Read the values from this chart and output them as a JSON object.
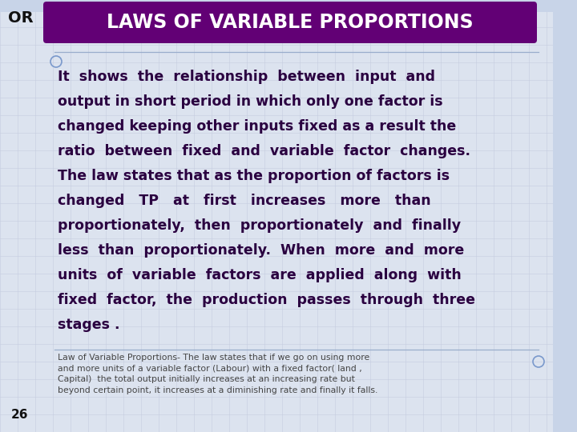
{
  "background_color": "#dce3ef",
  "grid_color": "#c5cde0",
  "title_text": "LAWS OF VARIABLE PROPORTIONS",
  "title_bg_color": "#620075",
  "title_text_color": "#ffffff",
  "or_text": "OR",
  "or_color": "#111111",
  "body_lines": [
    "It  shows  the  relationship  between  input  and",
    "output in short period in which only one factor is",
    "changed keeping other inputs fixed as a result the",
    "ratio  between  fixed  and  variable  factor  changes.",
    "The law states that as the proportion of factors is",
    "changed   TP   at   first   increases   more   than",
    "proportionately,  then  proportionately  and  finally",
    "less  than  proportionately.  When  more  and  more",
    "units  of  variable  factors  are  applied  along  with",
    "fixed  factor,  the  production  passes  through  three",
    "stages ."
  ],
  "footer_text": "Law of Variable Proportions- The law states that if we go on using more\nand more units of a variable factor (Labour) with a fixed factor( land ,\nCapital)  the total output initially increases at an increasing rate but\nbeyond certain point, it increases at a diminishing rate and finally it falls.",
  "page_number": "26",
  "body_text_color": "#2a0040",
  "footer_text_color": "#444444",
  "page_num_color": "#111111",
  "top_bar_color": "#c8d4e8",
  "right_bar_color": "#c8d4e8",
  "line_color": "#9aadcc",
  "circle_color": "#7a99cc"
}
